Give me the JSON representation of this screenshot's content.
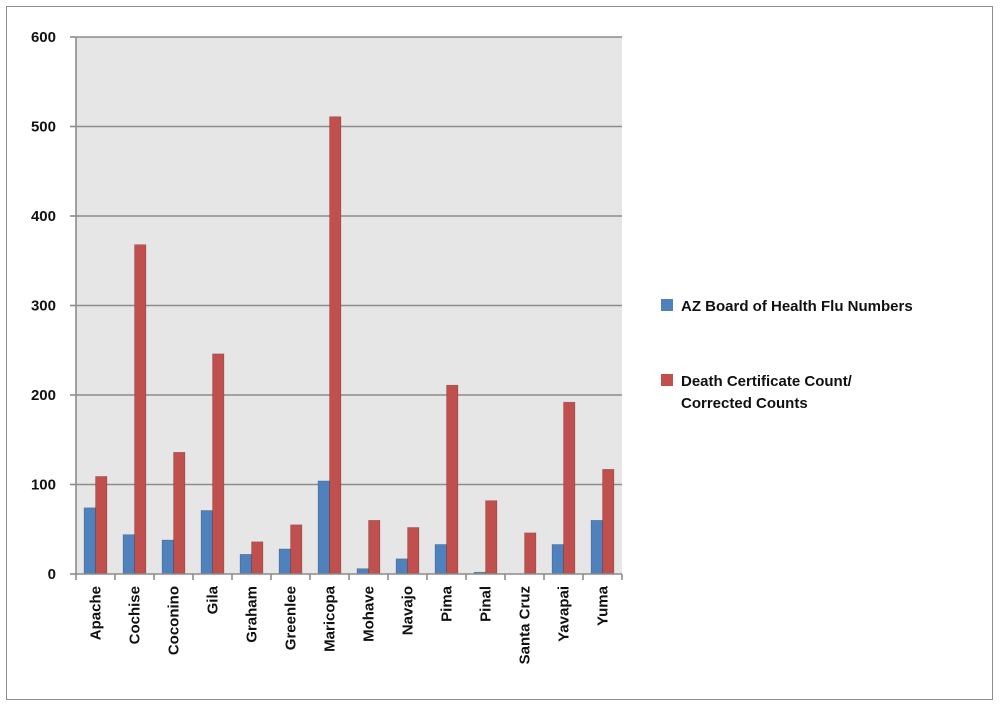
{
  "chart_data": {
    "type": "bar",
    "categories": [
      "Apache",
      "Cochise",
      "Coconino",
      "Gila",
      "Graham",
      "Greenlee",
      "Maricopa",
      "Mohave",
      "Navajo",
      "Pima",
      "Pinal",
      "Santa Cruz",
      "Yavapai",
      "Yuma"
    ],
    "series": [
      {
        "name": "AZ Board of Health Flu Numbers",
        "color": "#4f81bd",
        "values": [
          74,
          44,
          38,
          71,
          22,
          28,
          104,
          6,
          17,
          33,
          2,
          0,
          33,
          60
        ]
      },
      {
        "name": "Death Certificate Count/ Corrected Counts",
        "name_lines": [
          "Death Certificate Count/",
          "Corrected Counts"
        ],
        "color": "#c0504d",
        "values": [
          109,
          368,
          136,
          246,
          36,
          55,
          511,
          60,
          52,
          211,
          82,
          46,
          192,
          117
        ]
      }
    ],
    "yticks": [
      0,
      100,
      200,
      300,
      400,
      500,
      600
    ],
    "ylim": [
      0,
      600
    ],
    "grid": true,
    "plot_background": "#e6e6e6",
    "gridline_color": "#8c8c8c",
    "legend_position": "right"
  }
}
